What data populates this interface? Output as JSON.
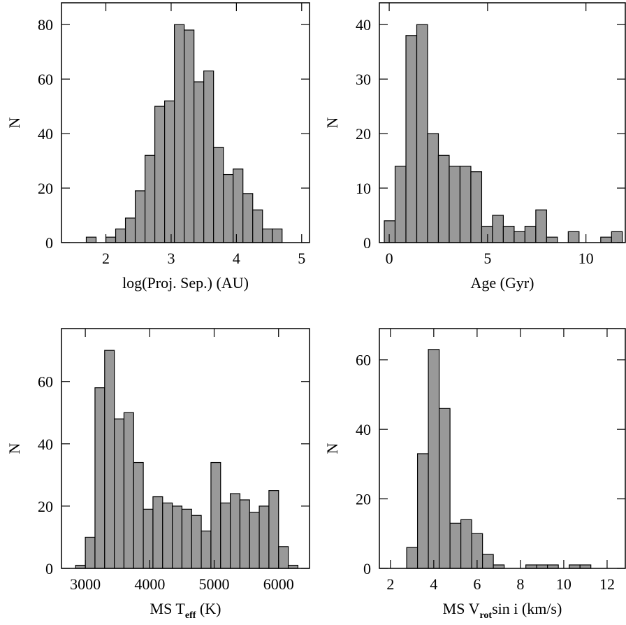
{
  "chart_data": [
    {
      "type": "histogram",
      "xlabel": [
        {
          "text": "log(Proj. Sep.) (AU)"
        }
      ],
      "ylabel": "N",
      "bins": [
        1.7,
        1.85,
        2.0,
        2.15,
        2.3,
        2.45,
        2.6,
        2.75,
        2.9,
        3.05,
        3.2,
        3.35,
        3.5,
        3.65,
        3.8,
        3.95,
        4.1,
        4.25,
        4.4,
        4.55,
        4.7
      ],
      "values": [
        2,
        0,
        2,
        5,
        9,
        19,
        32,
        50,
        52,
        80,
        78,
        59,
        63,
        35,
        25,
        27,
        18,
        12,
        5,
        5
      ],
      "color": "#999999",
      "xlim": [
        1.32,
        5.12
      ],
      "xticks": [
        2,
        3,
        4,
        5
      ],
      "ylim": [
        0,
        88
      ],
      "yticks": [
        0,
        20,
        40,
        60,
        80
      ]
    },
    {
      "type": "histogram",
      "xlabel": [
        {
          "text": "Age (Gyr)"
        }
      ],
      "ylabel": "N",
      "bins": [
        -0.25,
        0.3,
        0.85,
        1.4,
        1.95,
        2.5,
        3.05,
        3.6,
        4.15,
        4.7,
        5.25,
        5.8,
        6.35,
        6.9,
        7.45,
        8.0,
        8.55,
        9.1,
        9.65,
        10.2,
        10.75,
        11.3,
        11.85
      ],
      "values": [
        4,
        14,
        38,
        40,
        20,
        16,
        14,
        14,
        13,
        3,
        5,
        3,
        2,
        3,
        6,
        1,
        0,
        2,
        0,
        0,
        1,
        2
      ],
      "color": "#999999",
      "xlim": [
        -0.5,
        12
      ],
      "xticks": [
        0,
        5,
        10
      ],
      "ylim": [
        0,
        44
      ],
      "yticks": [
        0,
        10,
        20,
        30,
        40
      ]
    },
    {
      "type": "histogram",
      "xlabel": [
        {
          "text": "MS T"
        },
        {
          "text": "eff",
          "sub": true
        },
        {
          "text": " (K)"
        }
      ],
      "ylabel": "N",
      "bins": [
        2850,
        3000,
        3150,
        3300,
        3450,
        3600,
        3750,
        3900,
        4050,
        4200,
        4350,
        4500,
        4650,
        4800,
        4950,
        5100,
        5250,
        5400,
        5550,
        5700,
        5850,
        6000,
        6150,
        6300
      ],
      "values": [
        1,
        10,
        58,
        70,
        48,
        50,
        34,
        19,
        23,
        21,
        20,
        19,
        17,
        12,
        34,
        21,
        24,
        22,
        18,
        20,
        25,
        7,
        1
      ],
      "color": "#999999",
      "xlim": [
        2630,
        6480
      ],
      "xticks": [
        3000,
        4000,
        5000,
        6000
      ],
      "ylim": [
        0,
        77
      ],
      "yticks": [
        0,
        20,
        40,
        60
      ]
    },
    {
      "type": "histogram",
      "xlabel": [
        {
          "text": "MS V"
        },
        {
          "text": "rot",
          "sub": true
        },
        {
          "text": "sin i (km/s)"
        }
      ],
      "ylabel": "N",
      "bins": [
        2.75,
        3.25,
        3.75,
        4.25,
        4.75,
        5.25,
        5.75,
        6.25,
        6.75,
        7.25,
        7.75,
        8.25,
        8.75,
        9.25,
        9.75,
        10.25,
        10.75,
        11.25
      ],
      "values": [
        6,
        33,
        63,
        46,
        13,
        14,
        10,
        4,
        1,
        0,
        0,
        1,
        1,
        1,
        0,
        1,
        1
      ],
      "color": "#999999",
      "xlim": [
        1.49,
        12.84
      ],
      "xticks": [
        2,
        4,
        6,
        8,
        10,
        12
      ],
      "ylim": [
        0,
        69
      ],
      "yticks": [
        0,
        20,
        40,
        60
      ]
    }
  ]
}
